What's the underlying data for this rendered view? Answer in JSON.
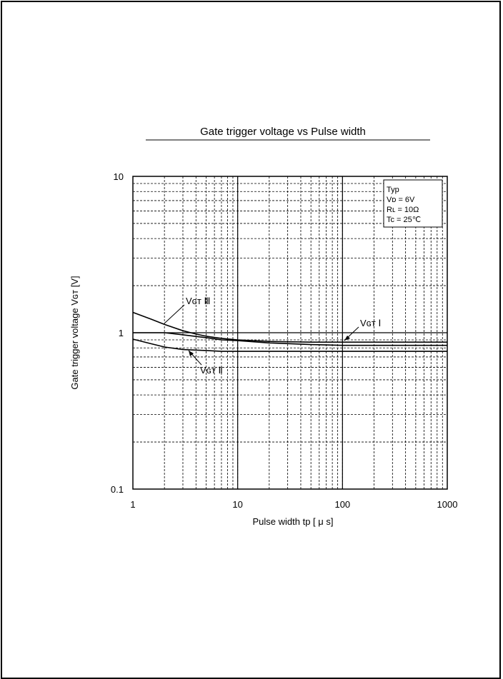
{
  "page": {
    "background": "#ffffff",
    "ink": "#000000"
  },
  "chart_data": {
    "type": "line",
    "title": "Gate trigger voltage  vs   Pulse width",
    "xlabel": "Pulse  width   tp  [ μ s]",
    "ylabel": "Gate  trigger  voltage Vɢᴛ [V]",
    "x_scale": "log",
    "y_scale": "log",
    "xlim": [
      1,
      1000
    ],
    "ylim": [
      0.1,
      10
    ],
    "grid": true,
    "x_ticks": [
      "1",
      "10",
      "100",
      "1000"
    ],
    "y_ticks": [
      "0.1",
      "1",
      "10"
    ],
    "conditions_box": {
      "placement": "top-right",
      "lines": [
        "Typ",
        "Vᴅ = 6V",
        "Rʟ = 10Ω",
        "Tc = 25℃"
      ]
    },
    "series": [
      {
        "name": "Vɢᴛ Ⅲ",
        "x": [
          1,
          1.5,
          2,
          3,
          4,
          5,
          7,
          10,
          20,
          50,
          100,
          1000
        ],
        "y": [
          1.35,
          1.22,
          1.13,
          1.03,
          0.98,
          0.95,
          0.92,
          0.9,
          0.88,
          0.87,
          0.87,
          0.87
        ]
      },
      {
        "name": "Vɢᴛ Ⅰ",
        "x": [
          1,
          2,
          3,
          5,
          7,
          10,
          20,
          50,
          100,
          1000
        ],
        "y": [
          1.0,
          1.0,
          0.97,
          0.93,
          0.9,
          0.89,
          0.86,
          0.84,
          0.83,
          0.83
        ]
      },
      {
        "name": "Vɢᴛ Ⅱ",
        "x": [
          1,
          1.5,
          2,
          3,
          5,
          7,
          10,
          20,
          100,
          1000
        ],
        "y": [
          0.91,
          0.85,
          0.81,
          0.78,
          0.77,
          0.76,
          0.76,
          0.76,
          0.76,
          0.76
        ]
      }
    ],
    "annotations": {
      "series_labels": [
        "Vɢᴛ Ⅲ",
        "Vɢᴛ Ⅰ",
        "Vɢᴛ Ⅱ"
      ]
    }
  }
}
